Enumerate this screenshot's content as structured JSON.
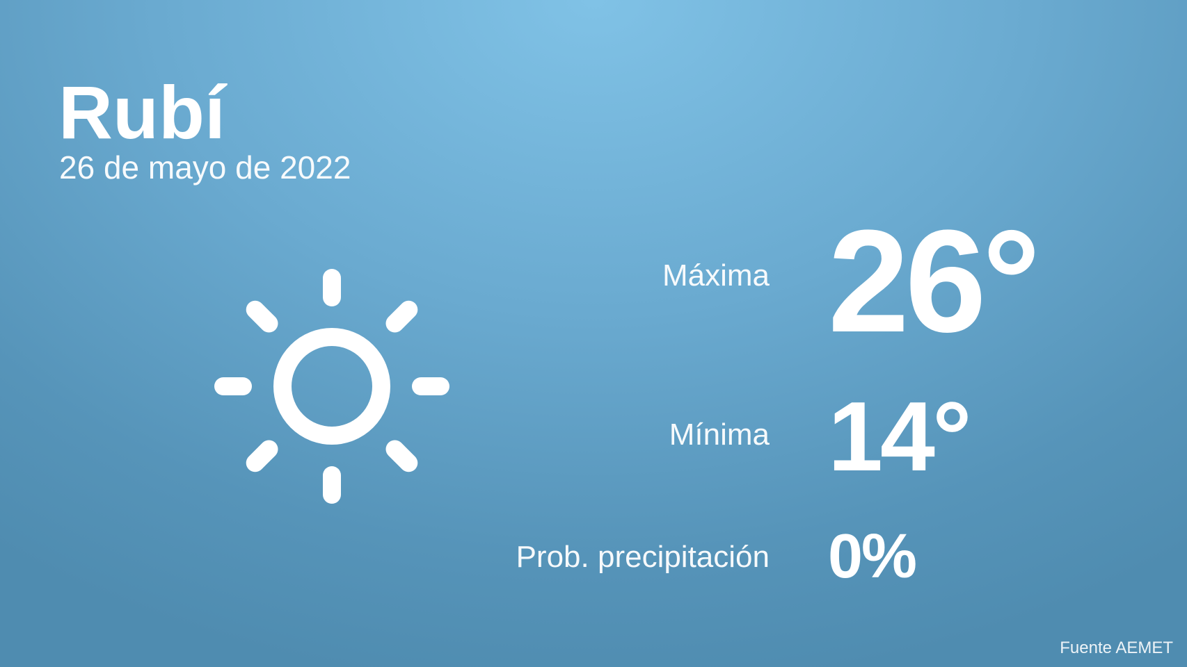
{
  "city": "Rubí",
  "date": "26 de mayo de 2022",
  "weather_icon": "sun-icon",
  "max": {
    "label": "Máxima",
    "value": "26°"
  },
  "min": {
    "label": "Mínima",
    "value": "14°"
  },
  "precip": {
    "label": "Prob. precipitación",
    "value": "0%"
  },
  "source": "Fuente AEMET",
  "colors": {
    "background_top": "#80c2e6",
    "background_bottom": "#4f8cb0",
    "text": "#ffffff"
  }
}
